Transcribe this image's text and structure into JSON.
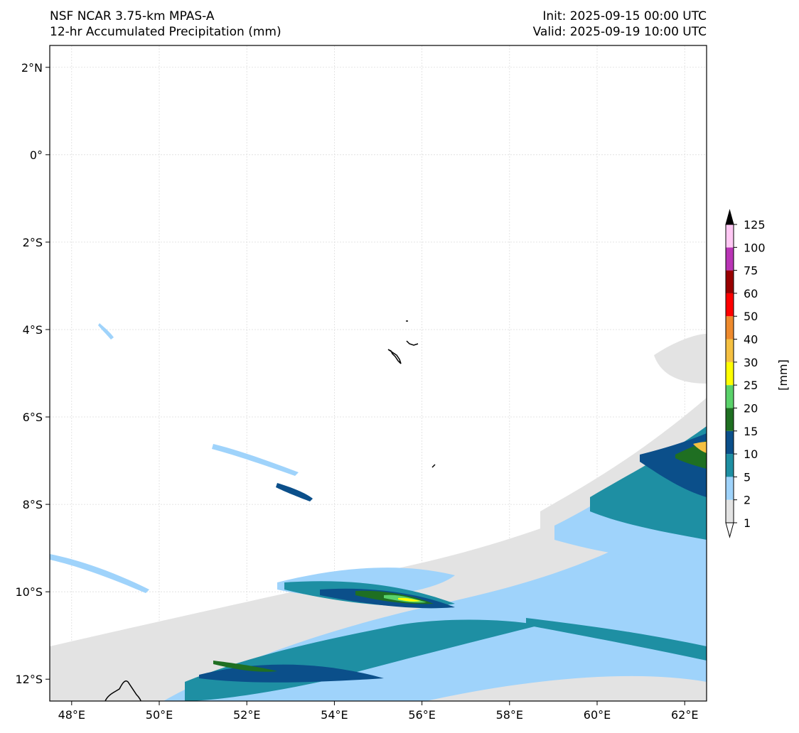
{
  "header": {
    "left_line1": "NSF NCAR 3.75-km MPAS-A",
    "left_line2": "12-hr Accumulated Precipitation (mm)",
    "right_line1": "Init: 2025-09-15 00:00 UTC",
    "right_line2": "Valid: 2025-09-19 10:00 UTC"
  },
  "axes": {
    "lon_ticks": [
      "48°E",
      "50°E",
      "52°E",
      "54°E",
      "56°E",
      "58°E",
      "60°E",
      "62°E"
    ],
    "lat_ticks": [
      "2°N",
      "0°",
      "2°S",
      "4°S",
      "6°S",
      "8°S",
      "10°S",
      "12°S"
    ],
    "lon_range": [
      47.5,
      62.5
    ],
    "lat_range": [
      -12.5,
      2.5
    ],
    "gridlines": true
  },
  "colorbar": {
    "unit_label": "[mm]",
    "levels": [
      "1",
      "2",
      "5",
      "10",
      "15",
      "20",
      "25",
      "30",
      "40",
      "50",
      "60",
      "75",
      "100",
      "125"
    ],
    "colors": [
      "#e3e3e3",
      "#9fd3fb",
      "#1e8fa3",
      "#0b4f8a",
      "#1f6f22",
      "#5ad26a",
      "#ffff00",
      "#f5c041",
      "#ee8a2d",
      "#ff0000",
      "#990000",
      "#b935b5",
      "#ffc8f4"
    ],
    "extend": "both"
  },
  "legend_colors": {
    "coast": "#000000",
    "grid": "#dddddd"
  }
}
